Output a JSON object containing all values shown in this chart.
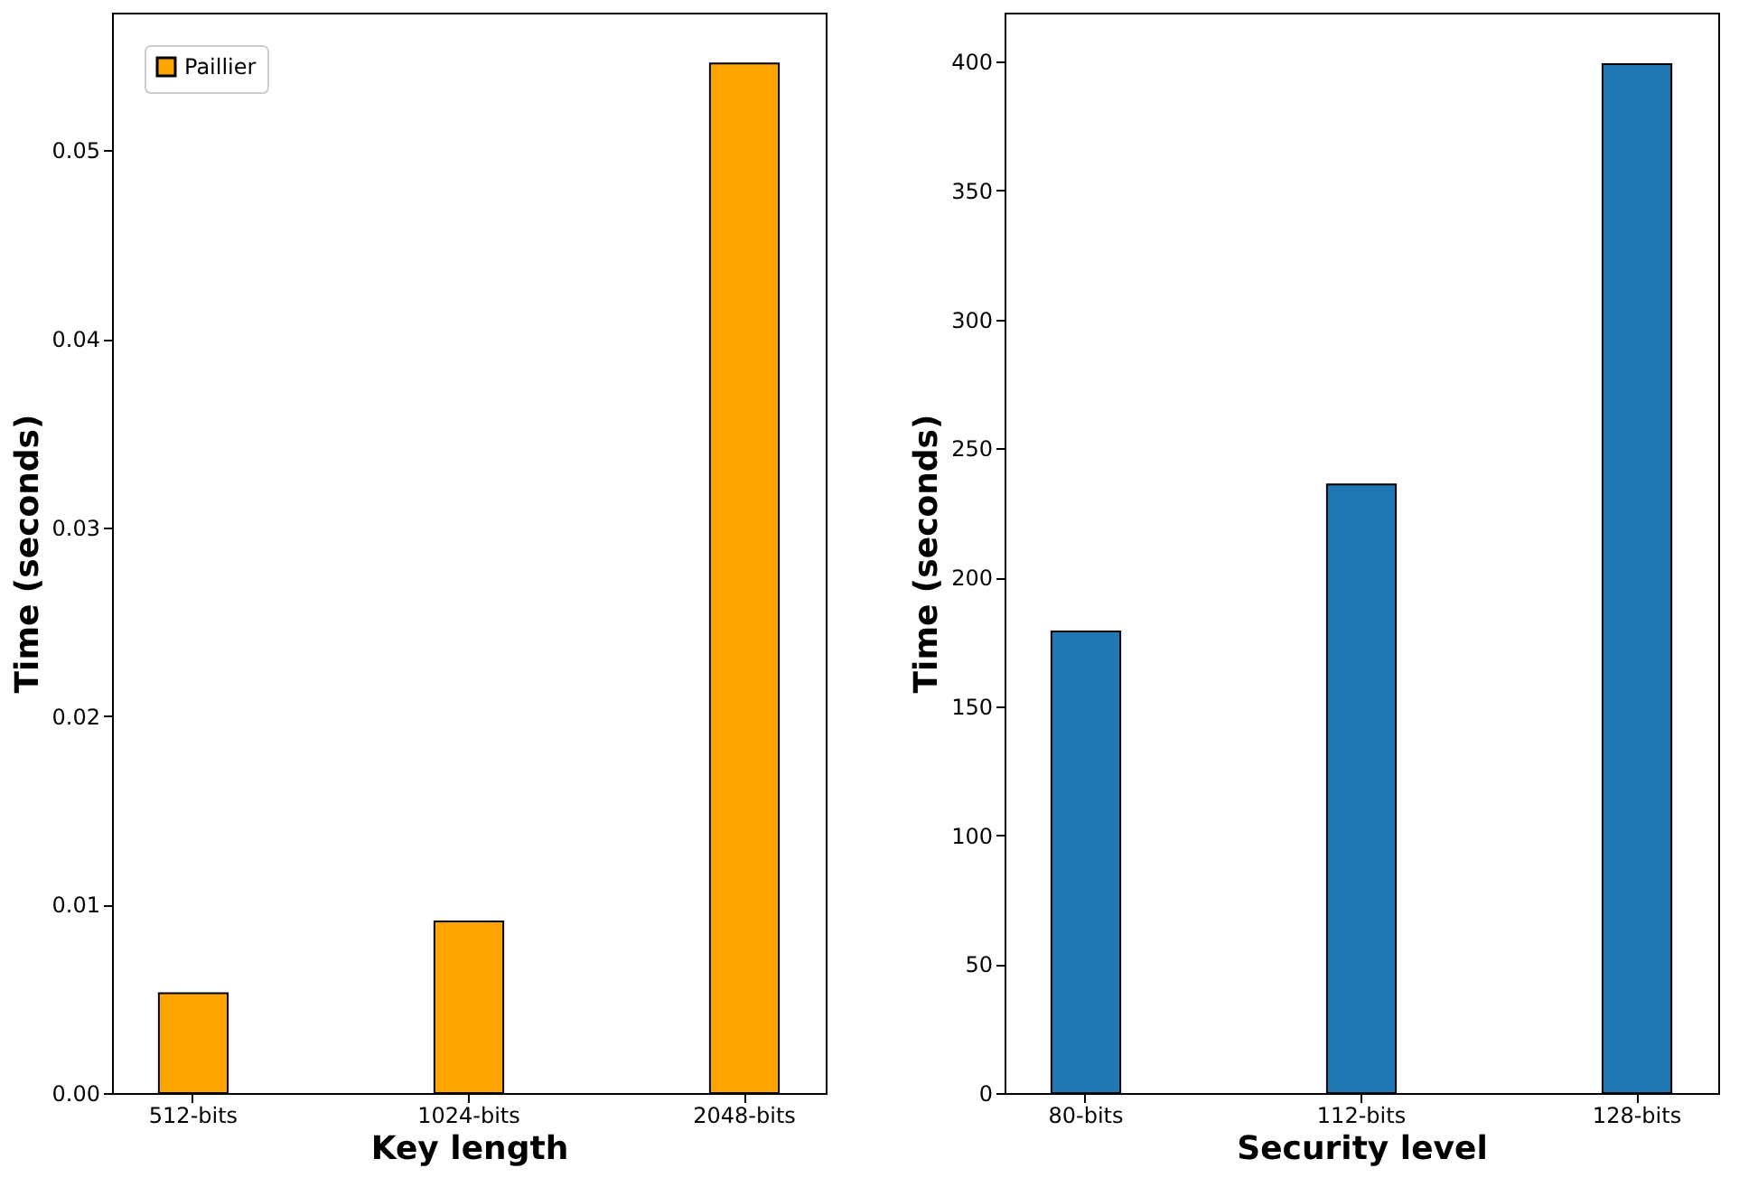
{
  "chart_data": [
    {
      "type": "bar",
      "xlabel": "Key length",
      "ylabel": "Time (seconds)",
      "categories": [
        "512-bits",
        "1024-bits",
        "2048-bits"
      ],
      "series": [
        {
          "name": "Paillier",
          "color": "#ffa500",
          "values": [
            0.0053,
            0.0091,
            0.0546
          ]
        }
      ],
      "ylim": [
        0,
        0.0573
      ],
      "yticks": [
        {
          "value": 0,
          "label": "0.00"
        },
        0.01,
        0.02,
        0.03,
        0.04,
        0.05
      ],
      "grid": false,
      "legend": "top left"
    },
    {
      "type": "bar",
      "xlabel": "Security level",
      "ylabel": "Time (seconds)",
      "categories": [
        "80-bits",
        "112-bits",
        "128-bits"
      ],
      "series": [
        {
          "color": "#1f77b4",
          "values": [
            179,
            236,
            399
          ]
        }
      ],
      "ylim": [
        0,
        419
      ],
      "yticks": [
        0,
        50,
        100,
        150,
        200,
        250,
        300,
        350,
        400
      ],
      "grid": false,
      "legend": false
    }
  ]
}
